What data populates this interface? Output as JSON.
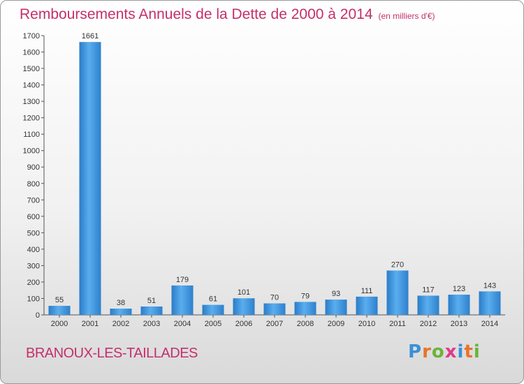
{
  "header": {
    "title": "Remboursements Annuels de la Dette de 2000 à 2014",
    "subtitle": "(en milliers d'€)"
  },
  "footer": {
    "commune": "BRANOUX-LES-TAILLADES",
    "logo": "Proxiti"
  },
  "chart_data": {
    "type": "bar",
    "title": "Remboursements Annuels de la Dette de 2000 à 2014",
    "subtitle": "(en milliers d'€)",
    "categories": [
      "2000",
      "2001",
      "2002",
      "2003",
      "2004",
      "2005",
      "2006",
      "2007",
      "2008",
      "2009",
      "2010",
      "2011",
      "2012",
      "2013",
      "2014"
    ],
    "values": [
      55,
      1661,
      38,
      51,
      179,
      61,
      101,
      70,
      79,
      93,
      111,
      270,
      117,
      123,
      143
    ],
    "ylim": [
      0,
      1700
    ],
    "yticks": [
      0,
      100,
      200,
      300,
      400,
      500,
      600,
      700,
      800,
      900,
      1000,
      1100,
      1200,
      1300,
      1400,
      1500,
      1600,
      1700
    ],
    "xlabel": "",
    "ylabel": "",
    "grid": false,
    "bar_color": "#3a8fd8"
  }
}
